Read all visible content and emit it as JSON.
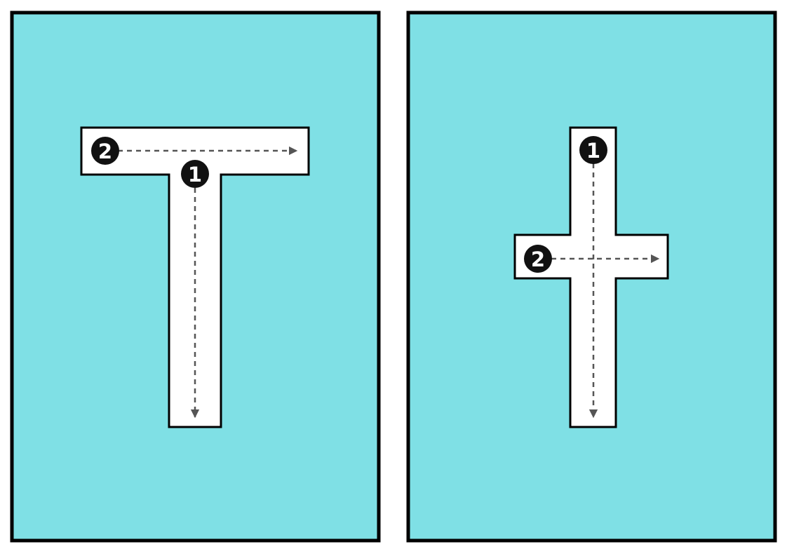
{
  "colors": {
    "panel_fill": "#7fe0e5",
    "border": "#000000",
    "shape_fill": "#ffffff",
    "guide_line": "#555555",
    "marker_fill": "#111111",
    "marker_text": "#ffffff"
  },
  "panels": [
    {
      "letter": "T",
      "steps": [
        {
          "number": "1",
          "direction": "down"
        },
        {
          "number": "2",
          "direction": "right"
        }
      ]
    },
    {
      "letter": "t",
      "steps": [
        {
          "number": "1",
          "direction": "down"
        },
        {
          "number": "2",
          "direction": "right"
        }
      ]
    }
  ]
}
